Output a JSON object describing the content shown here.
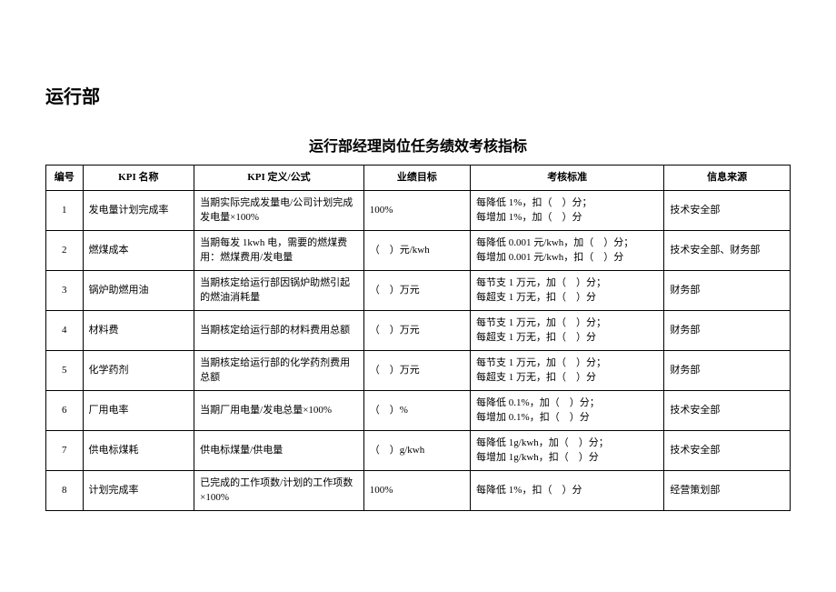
{
  "dept_heading": "运行部",
  "table_title": "运行部经理岗位任务绩效考核指标",
  "columns": {
    "no": "编号",
    "name": "KPI 名称",
    "def": "KPI 定义/公式",
    "target": "业绩目标",
    "standard": "考核标准",
    "source": "信息来源"
  },
  "rows": [
    {
      "no": "1",
      "name": "发电量计划完成率",
      "def": "当期实际完成发量电/公司计划完成发电量×100%",
      "target": "100%",
      "standard": "每降低 1%，扣（　）分；\n每增加 1%，加（　）分",
      "source": "技术安全部"
    },
    {
      "no": "2",
      "name": "燃煤成本",
      "def": "当期每发 1kwh 电，需要的燃煤费用：燃煤费用/发电量",
      "target": "（　）元/kwh",
      "standard": "每降低 0.001 元/kwh，加（　）分；\n每增加 0.001 元/kwh，扣（　）分",
      "source": "技术安全部、财务部"
    },
    {
      "no": "3",
      "name": "锅炉助燃用油",
      "def": "当期核定给运行部因锅炉助燃引起的燃油消耗量",
      "target": "（　）万元",
      "standard": "每节支 1 万元，加（　）分；\n每超支 1 万无，扣（　）分",
      "source": "财务部"
    },
    {
      "no": "4",
      "name": "材料费",
      "def": "当期核定给运行部的材料费用总额",
      "target": "（　）万元",
      "standard": "每节支 1 万元，加（　）分；\n每超支 1 万无，扣（　）分",
      "source": "财务部"
    },
    {
      "no": "5",
      "name": "化学药剂",
      "def": "当期核定给运行部的化学药剂费用总额",
      "target": "（　）万元",
      "standard": "每节支 1 万元，加（　）分；\n每超支 1 万无，扣（　）分",
      "source": "财务部"
    },
    {
      "no": "6",
      "name": "厂用电率",
      "def": "当期厂用电量/发电总量×100%",
      "target": "（　）%",
      "standard": "每降低 0.1%，加（　）分；\n每增加 0.1%，扣（　）分",
      "source": "技术安全部"
    },
    {
      "no": "7",
      "name": "供电标煤耗",
      "def": "供电标煤量/供电量",
      "target": "（　）g/kwh",
      "standard": "每降低 1g/kwh，加（　）分；\n每增加 1g/kwh，扣（　）分",
      "source": "技术安全部"
    },
    {
      "no": "8",
      "name": "计划完成率",
      "def": "已完成的工作项数/计划的工作项数×100%",
      "target": "100%",
      "standard": "每降低 1%，扣（　）分",
      "source": "经营策划部"
    }
  ]
}
